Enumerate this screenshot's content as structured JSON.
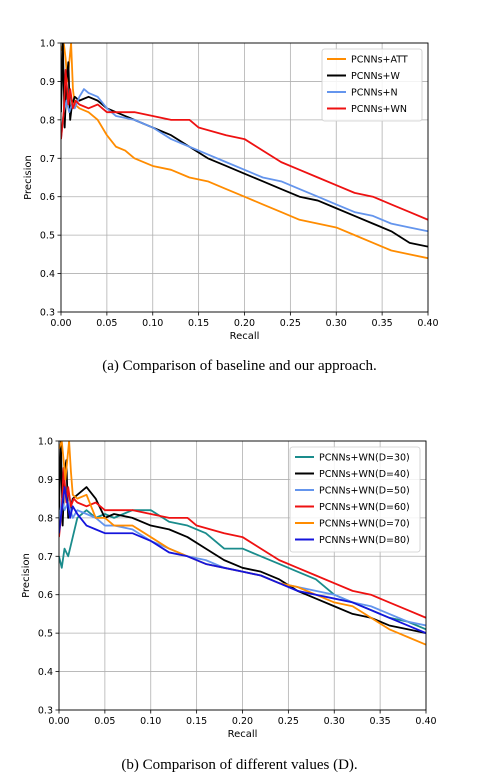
{
  "chart_data": [
    {
      "type": "line",
      "caption": "(a)  Comparison of baseline and our approach.",
      "xlabel": "Recall",
      "ylabel": "Precision",
      "xlim": [
        0.0,
        0.4
      ],
      "ylim": [
        0.3,
        1.0
      ],
      "xticks": [
        "0.00",
        "0.05",
        "0.10",
        "0.15",
        "0.20",
        "0.25",
        "0.30",
        "0.35",
        "0.40"
      ],
      "yticks": [
        "0.3",
        "0.4",
        "0.5",
        "0.6",
        "0.7",
        "0.8",
        "0.9",
        "1.0"
      ],
      "grid": true,
      "legend_position": "top-right",
      "series": [
        {
          "name": "PCNNs+ATT",
          "color": "#ff8c00",
          "x": [
            0.0,
            0.003,
            0.005,
            0.007,
            0.009,
            0.011,
            0.013,
            0.015,
            0.02,
            0.03,
            0.04,
            0.05,
            0.06,
            0.07,
            0.08,
            0.1,
            0.12,
            0.14,
            0.16,
            0.18,
            0.2,
            0.22,
            0.24,
            0.26,
            0.28,
            0.3,
            0.32,
            0.34,
            0.36,
            0.38,
            0.4
          ],
          "y": [
            0.98,
            1.0,
            0.96,
            0.9,
            0.95,
            1.0,
            0.88,
            0.84,
            0.83,
            0.82,
            0.8,
            0.76,
            0.73,
            0.72,
            0.7,
            0.68,
            0.67,
            0.65,
            0.64,
            0.62,
            0.6,
            0.58,
            0.56,
            0.54,
            0.53,
            0.52,
            0.5,
            0.48,
            0.46,
            0.45,
            0.44
          ]
        },
        {
          "name": "PCNNs+W",
          "color": "#000000",
          "x": [
            0.0,
            0.002,
            0.004,
            0.006,
            0.008,
            0.01,
            0.012,
            0.015,
            0.02,
            0.03,
            0.04,
            0.05,
            0.06,
            0.08,
            0.1,
            0.12,
            0.14,
            0.16,
            0.18,
            0.2,
            0.22,
            0.24,
            0.26,
            0.28,
            0.3,
            0.32,
            0.34,
            0.36,
            0.38,
            0.4
          ],
          "y": [
            0.82,
            1.0,
            0.78,
            0.9,
            0.95,
            0.8,
            0.84,
            0.86,
            0.85,
            0.86,
            0.85,
            0.83,
            0.82,
            0.8,
            0.78,
            0.76,
            0.73,
            0.7,
            0.68,
            0.66,
            0.64,
            0.62,
            0.6,
            0.59,
            0.57,
            0.55,
            0.53,
            0.51,
            0.48,
            0.47
          ]
        },
        {
          "name": "PCNNs+N",
          "color": "#6495ed",
          "x": [
            0.0,
            0.003,
            0.006,
            0.009,
            0.012,
            0.015,
            0.02,
            0.025,
            0.03,
            0.04,
            0.05,
            0.06,
            0.08,
            0.1,
            0.12,
            0.14,
            0.16,
            0.18,
            0.2,
            0.22,
            0.24,
            0.26,
            0.28,
            0.3,
            0.32,
            0.34,
            0.36,
            0.38,
            0.4
          ],
          "y": [
            0.75,
            0.82,
            0.85,
            0.82,
            0.84,
            0.83,
            0.86,
            0.88,
            0.87,
            0.86,
            0.83,
            0.81,
            0.8,
            0.78,
            0.75,
            0.73,
            0.71,
            0.69,
            0.67,
            0.65,
            0.64,
            0.62,
            0.6,
            0.58,
            0.56,
            0.55,
            0.53,
            0.52,
            0.51
          ]
        },
        {
          "name": "PCNNs+WN",
          "color": "#ee1111",
          "x": [
            0.0,
            0.003,
            0.005,
            0.008,
            0.01,
            0.013,
            0.016,
            0.02,
            0.03,
            0.04,
            0.05,
            0.06,
            0.08,
            0.1,
            0.12,
            0.14,
            0.15,
            0.18,
            0.2,
            0.22,
            0.24,
            0.26,
            0.28,
            0.3,
            0.32,
            0.34,
            0.36,
            0.38,
            0.4
          ],
          "y": [
            0.75,
            0.82,
            0.93,
            0.84,
            0.88,
            0.83,
            0.85,
            0.84,
            0.83,
            0.84,
            0.82,
            0.82,
            0.82,
            0.81,
            0.8,
            0.8,
            0.78,
            0.76,
            0.75,
            0.72,
            0.69,
            0.67,
            0.65,
            0.63,
            0.61,
            0.6,
            0.58,
            0.56,
            0.54
          ]
        }
      ]
    },
    {
      "type": "line",
      "caption": "(b)  Comparison of different values (D).",
      "xlabel": "Recall",
      "ylabel": "Precision",
      "xlim": [
        0.0,
        0.4
      ],
      "ylim": [
        0.3,
        1.0
      ],
      "xticks": [
        "0.00",
        "0.05",
        "0.10",
        "0.15",
        "0.20",
        "0.25",
        "0.30",
        "0.35",
        "0.40"
      ],
      "yticks": [
        "0.3",
        "0.4",
        "0.5",
        "0.6",
        "0.7",
        "0.8",
        "0.9",
        "1.0"
      ],
      "grid": true,
      "legend_position": "top-right",
      "series": [
        {
          "name": "PCNNs+WN(D=30)",
          "color": "#1a8c8c",
          "x": [
            0.0,
            0.003,
            0.006,
            0.01,
            0.015,
            0.02,
            0.03,
            0.04,
            0.05,
            0.06,
            0.08,
            0.1,
            0.12,
            0.14,
            0.16,
            0.18,
            0.2,
            0.22,
            0.24,
            0.26,
            0.28,
            0.3,
            0.32,
            0.34,
            0.36,
            0.38,
            0.4
          ],
          "y": [
            0.7,
            0.67,
            0.72,
            0.7,
            0.75,
            0.8,
            0.82,
            0.8,
            0.81,
            0.8,
            0.82,
            0.82,
            0.79,
            0.78,
            0.76,
            0.72,
            0.72,
            0.7,
            0.68,
            0.66,
            0.64,
            0.6,
            0.58,
            0.56,
            0.54,
            0.53,
            0.51
          ]
        },
        {
          "name": "PCNNs+WN(D=40)",
          "color": "#000000",
          "x": [
            0.0,
            0.002,
            0.004,
            0.006,
            0.008,
            0.01,
            0.015,
            0.02,
            0.03,
            0.04,
            0.05,
            0.06,
            0.08,
            0.1,
            0.12,
            0.14,
            0.16,
            0.18,
            0.2,
            0.22,
            0.24,
            0.26,
            0.28,
            0.3,
            0.32,
            0.34,
            0.36,
            0.38,
            0.4
          ],
          "y": [
            0.82,
            1.0,
            0.78,
            0.92,
            0.95,
            0.8,
            0.85,
            0.86,
            0.88,
            0.85,
            0.8,
            0.81,
            0.8,
            0.78,
            0.77,
            0.75,
            0.72,
            0.69,
            0.67,
            0.66,
            0.64,
            0.61,
            0.59,
            0.57,
            0.55,
            0.54,
            0.52,
            0.51,
            0.5
          ]
        },
        {
          "name": "PCNNs+WN(D=50)",
          "color": "#6495ed",
          "x": [
            0.0,
            0.003,
            0.006,
            0.01,
            0.015,
            0.02,
            0.03,
            0.04,
            0.05,
            0.06,
            0.08,
            0.1,
            0.12,
            0.14,
            0.16,
            0.18,
            0.2,
            0.22,
            0.24,
            0.26,
            0.28,
            0.3,
            0.32,
            0.34,
            0.36,
            0.38,
            0.4
          ],
          "y": [
            0.78,
            0.85,
            0.82,
            0.84,
            0.8,
            0.82,
            0.81,
            0.8,
            0.78,
            0.78,
            0.77,
            0.74,
            0.72,
            0.7,
            0.69,
            0.67,
            0.66,
            0.65,
            0.63,
            0.62,
            0.61,
            0.6,
            0.58,
            0.57,
            0.55,
            0.53,
            0.52
          ]
        },
        {
          "name": "PCNNs+WN(D=60)",
          "color": "#ee1111",
          "x": [
            0.0,
            0.003,
            0.005,
            0.008,
            0.01,
            0.013,
            0.016,
            0.02,
            0.03,
            0.04,
            0.05,
            0.06,
            0.08,
            0.1,
            0.12,
            0.14,
            0.15,
            0.18,
            0.2,
            0.22,
            0.24,
            0.26,
            0.28,
            0.3,
            0.32,
            0.34,
            0.36,
            0.38,
            0.4
          ],
          "y": [
            0.75,
            0.82,
            0.93,
            0.84,
            0.88,
            0.83,
            0.85,
            0.84,
            0.83,
            0.84,
            0.82,
            0.82,
            0.82,
            0.81,
            0.8,
            0.8,
            0.78,
            0.76,
            0.75,
            0.72,
            0.69,
            0.67,
            0.65,
            0.63,
            0.61,
            0.6,
            0.58,
            0.56,
            0.54
          ]
        },
        {
          "name": "PCNNs+WN(D=70)",
          "color": "#ff8c00",
          "x": [
            0.0,
            0.003,
            0.005,
            0.007,
            0.009,
            0.011,
            0.013,
            0.015,
            0.02,
            0.03,
            0.04,
            0.05,
            0.06,
            0.08,
            0.1,
            0.12,
            0.14,
            0.16,
            0.18,
            0.2,
            0.22,
            0.24,
            0.26,
            0.28,
            0.3,
            0.32,
            0.34,
            0.36,
            0.38,
            0.4
          ],
          "y": [
            0.98,
            1.0,
            0.95,
            0.9,
            0.95,
            1.0,
            0.92,
            0.86,
            0.85,
            0.86,
            0.8,
            0.8,
            0.78,
            0.78,
            0.75,
            0.72,
            0.7,
            0.68,
            0.67,
            0.66,
            0.65,
            0.63,
            0.62,
            0.6,
            0.58,
            0.57,
            0.54,
            0.51,
            0.49,
            0.47
          ]
        },
        {
          "name": "PCNNs+WN(D=80)",
          "color": "#1414dc",
          "x": [
            0.0,
            0.003,
            0.006,
            0.009,
            0.012,
            0.015,
            0.02,
            0.03,
            0.04,
            0.05,
            0.06,
            0.08,
            0.1,
            0.12,
            0.14,
            0.16,
            0.18,
            0.2,
            0.22,
            0.24,
            0.26,
            0.28,
            0.3,
            0.32,
            0.34,
            0.36,
            0.38,
            0.4
          ],
          "y": [
            0.76,
            0.82,
            0.88,
            0.84,
            0.8,
            0.83,
            0.81,
            0.78,
            0.77,
            0.76,
            0.76,
            0.76,
            0.74,
            0.71,
            0.7,
            0.68,
            0.67,
            0.66,
            0.65,
            0.63,
            0.61,
            0.6,
            0.59,
            0.58,
            0.56,
            0.54,
            0.52,
            0.5
          ]
        }
      ]
    }
  ]
}
